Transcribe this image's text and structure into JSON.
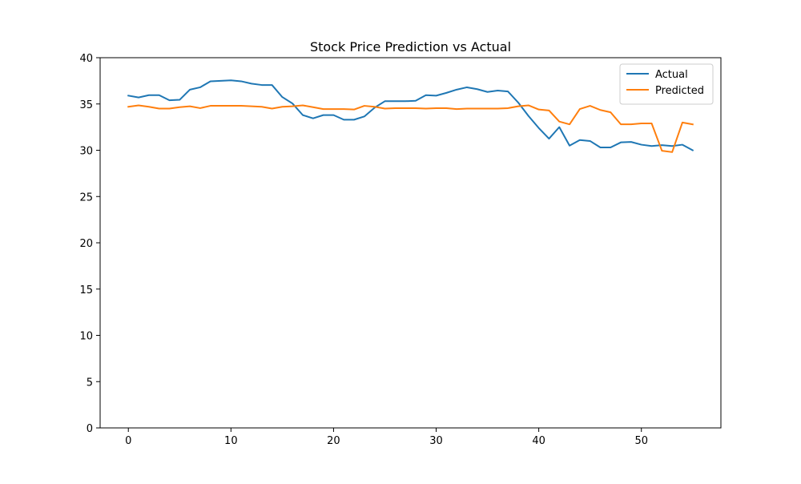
{
  "chart_data": {
    "type": "line",
    "title": "Stock Price Prediction vs Actual",
    "xlabel": "",
    "ylabel": "",
    "xlim": [
      -2.75,
      57.75
    ],
    "ylim": [
      0,
      40
    ],
    "xticks": [
      0,
      10,
      20,
      30,
      40,
      50
    ],
    "yticks": [
      0,
      5,
      10,
      15,
      20,
      25,
      30,
      35,
      40
    ],
    "grid": false,
    "legend_position": "top-right",
    "x": [
      0,
      1,
      2,
      3,
      4,
      5,
      6,
      7,
      8,
      9,
      10,
      11,
      12,
      13,
      14,
      15,
      16,
      17,
      18,
      19,
      20,
      21,
      22,
      23,
      24,
      25,
      26,
      27,
      28,
      29,
      30,
      31,
      32,
      33,
      34,
      35,
      36,
      37,
      38,
      39,
      40,
      41,
      42,
      43,
      44,
      45,
      46,
      47,
      48,
      49,
      50,
      51,
      52,
      53,
      54,
      55
    ],
    "series": [
      {
        "name": "Actual",
        "color": "#1f77b4",
        "values": [
          35.9,
          35.7,
          35.95,
          35.95,
          35.4,
          35.45,
          36.55,
          36.8,
          37.45,
          37.5,
          37.55,
          37.45,
          37.2,
          37.05,
          37.05,
          35.75,
          35.05,
          33.8,
          33.45,
          33.8,
          33.8,
          33.3,
          33.3,
          33.65,
          34.6,
          35.3,
          35.3,
          35.3,
          35.35,
          35.95,
          35.9,
          36.2,
          36.55,
          36.8,
          36.6,
          36.3,
          36.45,
          36.35,
          35.15,
          33.7,
          32.4,
          31.25,
          32.5,
          30.5,
          31.1,
          31.0,
          30.3,
          30.3,
          30.85,
          30.9,
          30.6,
          30.45,
          30.55,
          30.45,
          30.6,
          30.0
        ]
      },
      {
        "name": "Predicted",
        "color": "#ff7f0e",
        "values": [
          34.7,
          34.85,
          34.7,
          34.5,
          34.5,
          34.65,
          34.75,
          34.55,
          34.8,
          34.8,
          34.8,
          34.8,
          34.75,
          34.7,
          34.5,
          34.7,
          34.75,
          34.85,
          34.65,
          34.45,
          34.45,
          34.45,
          34.4,
          34.8,
          34.7,
          34.5,
          34.55,
          34.55,
          34.55,
          34.5,
          34.55,
          34.55,
          34.45,
          34.5,
          34.5,
          34.5,
          34.5,
          34.55,
          34.75,
          34.85,
          34.4,
          34.3,
          33.1,
          32.8,
          34.45,
          34.8,
          34.35,
          34.1,
          32.8,
          32.8,
          32.9,
          32.9,
          29.95,
          29.8,
          33.0,
          32.8
        ]
      }
    ]
  }
}
